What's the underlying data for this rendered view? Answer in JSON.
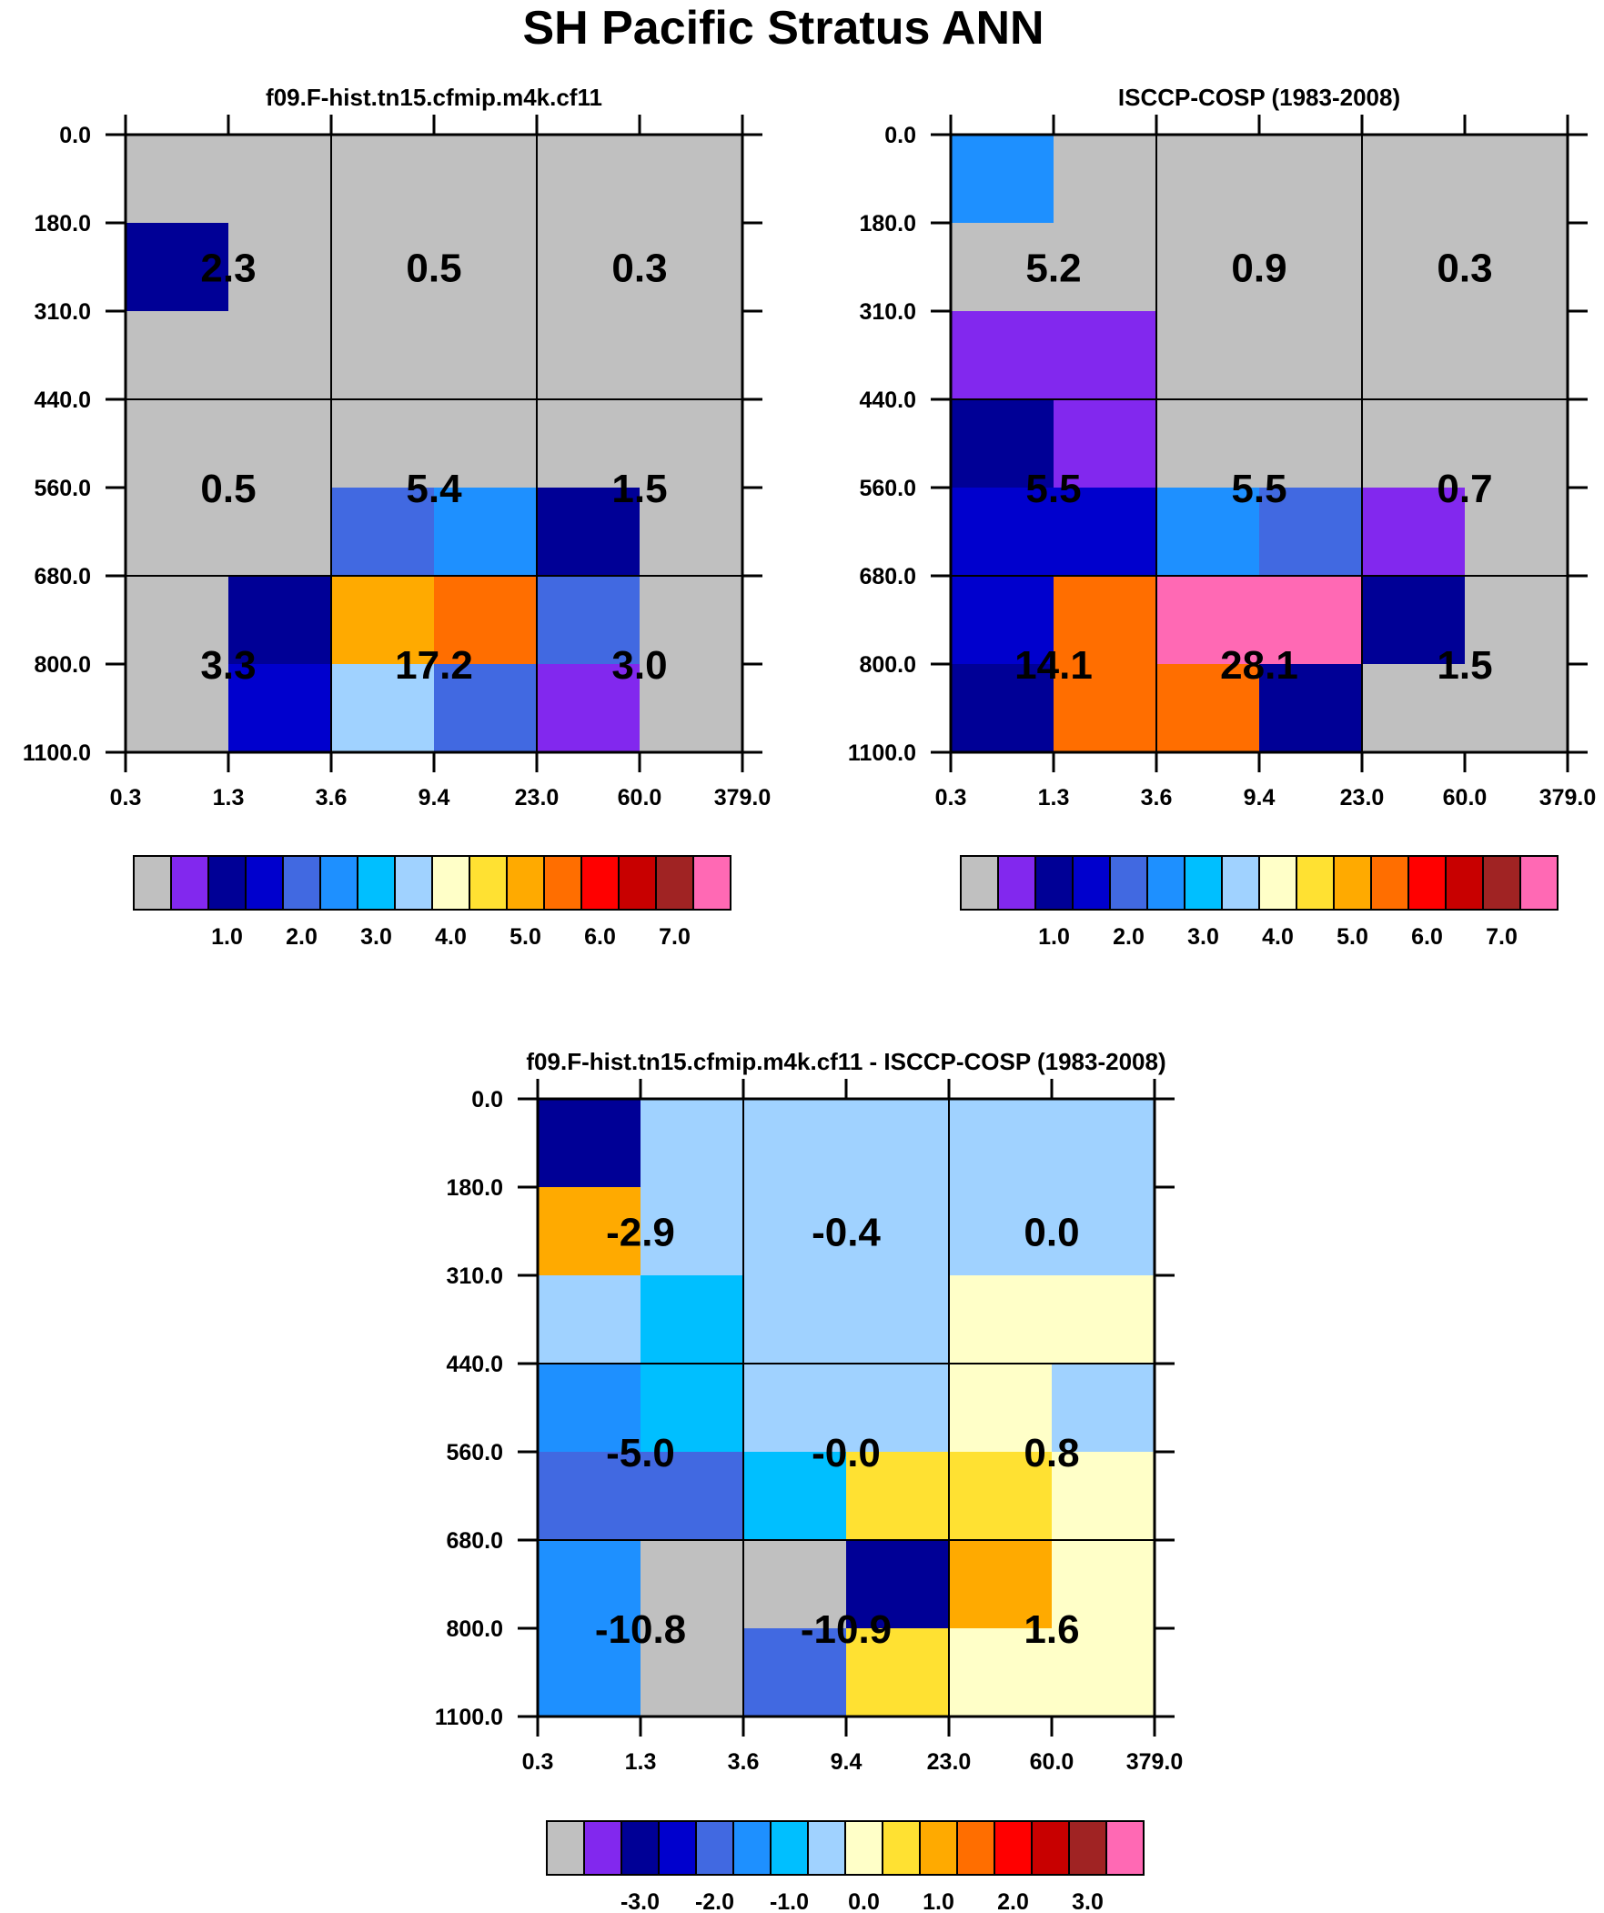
{
  "figure": {
    "title": "SH Pacific Stratus ANN"
  },
  "chart_data": [
    {
      "type": "heatmap",
      "title": "f09.F-hist.tn15.cfmip.m4k.cf11",
      "x_tick_labels": [
        "0.3",
        "1.3",
        "3.6",
        "9.4",
        "23.0",
        "60.0",
        "379.0"
      ],
      "y_tick_labels": [
        "0.0",
        "180.0",
        "310.0",
        "440.0",
        "560.0",
        "680.0",
        "800.0",
        "1100.0"
      ],
      "cell_color_levels": [
        [
          0,
          0,
          0,
          0,
          0,
          0
        ],
        [
          2,
          0,
          0,
          0,
          0,
          0
        ],
        [
          0,
          0,
          0,
          0,
          0,
          0
        ],
        [
          0,
          0,
          0,
          0,
          0,
          0
        ],
        [
          0,
          0,
          4,
          5,
          2,
          0
        ],
        [
          0,
          2,
          10,
          11,
          4,
          0
        ],
        [
          0,
          3,
          7,
          4,
          1,
          0
        ]
      ],
      "block_sums": [
        [
          2.3,
          0.5,
          0.3
        ],
        [
          0.5,
          5.4,
          1.5
        ],
        [
          3.3,
          17.2,
          3.0
        ]
      ],
      "colorbar": {
        "tick_labels": [
          "1.0",
          "2.0",
          "3.0",
          "4.0",
          "5.0",
          "6.0",
          "7.0"
        ]
      }
    },
    {
      "type": "heatmap",
      "title": "ISCCP-COSP (1983-2008)",
      "x_tick_labels": [
        "0.3",
        "1.3",
        "3.6",
        "9.4",
        "23.0",
        "60.0",
        "379.0"
      ],
      "y_tick_labels": [
        "0.0",
        "180.0",
        "310.0",
        "440.0",
        "560.0",
        "680.0",
        "800.0",
        "1100.0"
      ],
      "cell_color_levels": [
        [
          5,
          0,
          0,
          0,
          0,
          0
        ],
        [
          0,
          0,
          0,
          0,
          0,
          0
        ],
        [
          1,
          1,
          0,
          0,
          0,
          0
        ],
        [
          2,
          1,
          0,
          0,
          0,
          0
        ],
        [
          3,
          3,
          5,
          4,
          1,
          0
        ],
        [
          3,
          11,
          15,
          15,
          2,
          0
        ],
        [
          2,
          11,
          11,
          2,
          0,
          0
        ]
      ],
      "block_sums": [
        [
          5.2,
          0.9,
          0.3
        ],
        [
          5.5,
          5.5,
          0.7
        ],
        [
          14.1,
          28.1,
          1.5
        ]
      ],
      "colorbar": {
        "tick_labels": [
          "1.0",
          "2.0",
          "3.0",
          "4.0",
          "5.0",
          "6.0",
          "7.0"
        ]
      }
    },
    {
      "type": "heatmap",
      "title": "f09.F-hist.tn15.cfmip.m4k.cf11 - ISCCP-COSP (1983-2008)",
      "x_tick_labels": [
        "0.3",
        "1.3",
        "3.6",
        "9.4",
        "23.0",
        "60.0",
        "379.0"
      ],
      "y_tick_labels": [
        "0.0",
        "180.0",
        "310.0",
        "440.0",
        "560.0",
        "680.0",
        "800.0",
        "1100.0"
      ],
      "cell_color_levels": [
        [
          2,
          7,
          7,
          7,
          7,
          7
        ],
        [
          10,
          7,
          7,
          7,
          7,
          7
        ],
        [
          7,
          6,
          7,
          7,
          8,
          8
        ],
        [
          5,
          6,
          7,
          7,
          8,
          7
        ],
        [
          4,
          4,
          6,
          9,
          9,
          8
        ],
        [
          5,
          0,
          0,
          2,
          10,
          8
        ],
        [
          5,
          0,
          4,
          9,
          8,
          8
        ]
      ],
      "block_sums": [
        [
          -2.9,
          -0.4,
          0.0
        ],
        [
          -5.0,
          -0.0,
          0.8
        ],
        [
          -10.8,
          -10.9,
          1.6
        ]
      ],
      "colorbar": {
        "tick_labels": [
          "-3.0",
          "-2.0",
          "-1.0",
          "0.0",
          "1.0",
          "2.0",
          "3.0"
        ]
      }
    }
  ],
  "palette": [
    "#c0c0c0",
    "#8228ee",
    "#000096",
    "#0000cd",
    "#4169e1",
    "#1e90ff",
    "#00bfff",
    "#a0d2ff",
    "#ffffc8",
    "#ffe132",
    "#ffaa00",
    "#ff6e00",
    "#ff0000",
    "#c80000",
    "#a02323",
    "#ff69b4"
  ],
  "label_texts": [
    [
      [
        "2.3",
        "0.5",
        "0.3"
      ],
      [
        "0.5",
        "5.4",
        "1.5"
      ],
      [
        "3.3",
        "17.2",
        "3.0"
      ]
    ],
    [
      [
        "5.2",
        "0.9",
        "0.3"
      ],
      [
        "5.5",
        "5.5",
        "0.7"
      ],
      [
        "14.1",
        "28.1",
        "1.5"
      ]
    ],
    [
      [
        "-2.9",
        "-0.4",
        "0.0"
      ],
      [
        "-5.0",
        "-0.0",
        "0.8"
      ],
      [
        "-10.8",
        "-10.9",
        "1.6"
      ]
    ]
  ]
}
